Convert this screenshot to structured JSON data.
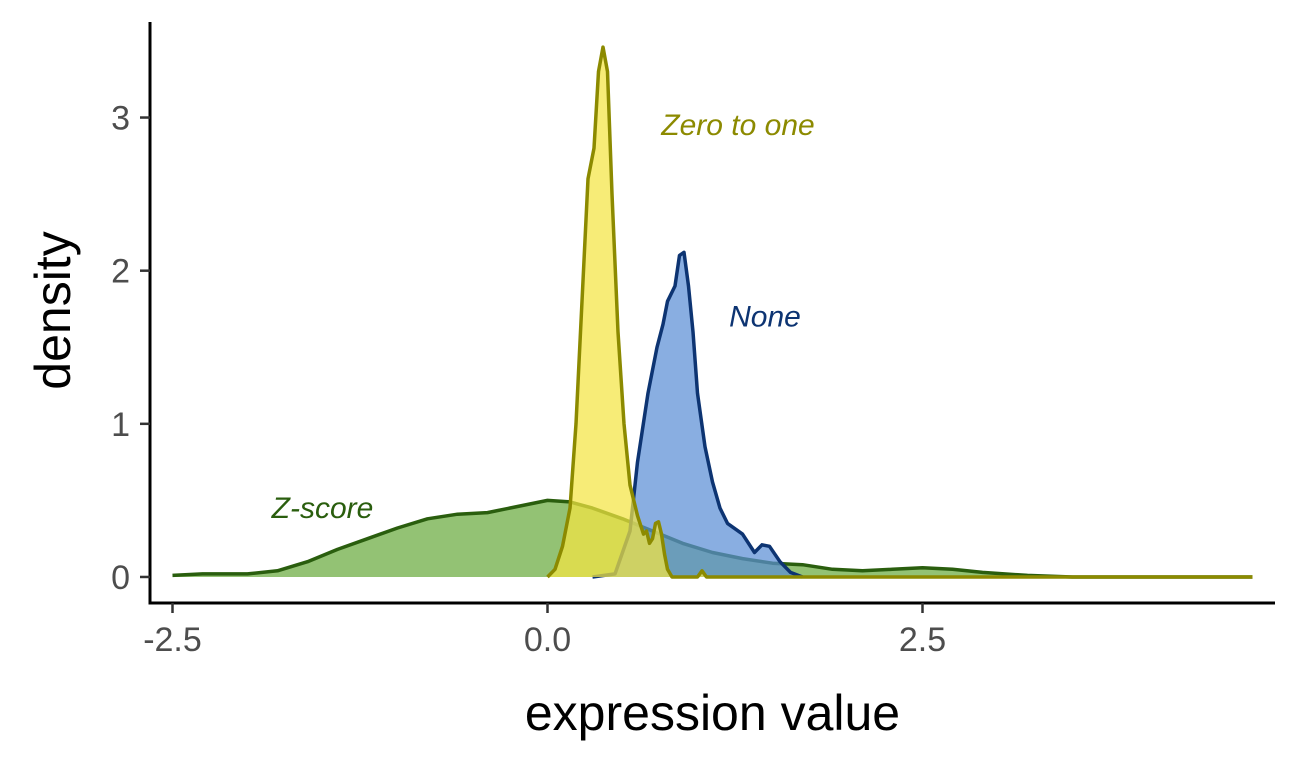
{
  "chart_data": {
    "type": "area",
    "xlabel": "expression value",
    "ylabel": "density",
    "xlim": [
      -2.65,
      4.85
    ],
    "ylim": [
      -0.17,
      3.65
    ],
    "x_ticks": [
      -2.5,
      0.0,
      2.5
    ],
    "x_tick_labels": [
      "-2.5",
      "0.0",
      "2.5"
    ],
    "y_ticks": [
      0,
      1,
      2,
      3
    ],
    "y_tick_labels": [
      "0",
      "1",
      "2",
      "3"
    ],
    "grid": false,
    "series": [
      {
        "name": "Z-score",
        "fill": "#6aaa3f",
        "line": "#2a5e0e",
        "points": [
          [
            -2.5,
            0.01
          ],
          [
            -2.3,
            0.02
          ],
          [
            -2.0,
            0.02
          ],
          [
            -1.8,
            0.04
          ],
          [
            -1.6,
            0.1
          ],
          [
            -1.4,
            0.18
          ],
          [
            -1.2,
            0.25
          ],
          [
            -1.0,
            0.32
          ],
          [
            -0.8,
            0.38
          ],
          [
            -0.6,
            0.41
          ],
          [
            -0.4,
            0.42
          ],
          [
            -0.2,
            0.46
          ],
          [
            0.0,
            0.5
          ],
          [
            0.15,
            0.49
          ],
          [
            0.3,
            0.45
          ],
          [
            0.5,
            0.38
          ],
          [
            0.7,
            0.3
          ],
          [
            0.9,
            0.22
          ],
          [
            1.1,
            0.16
          ],
          [
            1.3,
            0.12
          ],
          [
            1.5,
            0.09
          ],
          [
            1.7,
            0.08
          ],
          [
            1.9,
            0.05
          ],
          [
            2.1,
            0.04
          ],
          [
            2.3,
            0.05
          ],
          [
            2.5,
            0.06
          ],
          [
            2.7,
            0.05
          ],
          [
            2.9,
            0.03
          ],
          [
            3.2,
            0.01
          ],
          [
            3.5,
            0.0
          ],
          [
            4.0,
            0.0
          ],
          [
            4.7,
            0.0
          ]
        ]
      },
      {
        "name": "None",
        "fill": "#5b8fd6",
        "line": "#0d3472",
        "points": [
          [
            0.3,
            0.0
          ],
          [
            0.45,
            0.02
          ],
          [
            0.55,
            0.3
          ],
          [
            0.6,
            0.75
          ],
          [
            0.67,
            1.2
          ],
          [
            0.73,
            1.5
          ],
          [
            0.77,
            1.65
          ],
          [
            0.8,
            1.8
          ],
          [
            0.85,
            1.9
          ],
          [
            0.88,
            2.1
          ],
          [
            0.91,
            2.12
          ],
          [
            0.94,
            1.9
          ],
          [
            0.97,
            1.6
          ],
          [
            1.0,
            1.2
          ],
          [
            1.05,
            0.85
          ],
          [
            1.1,
            0.62
          ],
          [
            1.15,
            0.45
          ],
          [
            1.2,
            0.35
          ],
          [
            1.3,
            0.28
          ],
          [
            1.38,
            0.16
          ],
          [
            1.43,
            0.21
          ],
          [
            1.48,
            0.2
          ],
          [
            1.55,
            0.1
          ],
          [
            1.62,
            0.03
          ],
          [
            1.7,
            0.0
          ]
        ]
      },
      {
        "name": "Zero to one",
        "fill": "#f4e542",
        "line": "#8c8a00",
        "points": [
          [
            0.0,
            0.0
          ],
          [
            0.05,
            0.05
          ],
          [
            0.1,
            0.2
          ],
          [
            0.15,
            0.45
          ],
          [
            0.19,
            1.0
          ],
          [
            0.23,
            1.8
          ],
          [
            0.27,
            2.6
          ],
          [
            0.31,
            2.8
          ],
          [
            0.34,
            3.3
          ],
          [
            0.37,
            3.46
          ],
          [
            0.4,
            3.3
          ],
          [
            0.43,
            2.5
          ],
          [
            0.47,
            1.6
          ],
          [
            0.51,
            1.0
          ],
          [
            0.55,
            0.6
          ],
          [
            0.6,
            0.4
          ],
          [
            0.64,
            0.28
          ],
          [
            0.66,
            0.3
          ],
          [
            0.68,
            0.22
          ],
          [
            0.7,
            0.25
          ],
          [
            0.72,
            0.35
          ],
          [
            0.74,
            0.36
          ],
          [
            0.76,
            0.28
          ],
          [
            0.78,
            0.15
          ],
          [
            0.8,
            0.05
          ],
          [
            0.83,
            0.0
          ],
          [
            1.0,
            0.0
          ],
          [
            1.03,
            0.04
          ],
          [
            1.06,
            0.0
          ],
          [
            1.5,
            0.0
          ],
          [
            2.5,
            0.0
          ],
          [
            3.5,
            0.0
          ],
          [
            4.7,
            0.0
          ]
        ]
      }
    ],
    "annotations": [
      {
        "text": "Z-score",
        "x": -1.5,
        "y": 0.45,
        "color": "#2a5e0e"
      },
      {
        "text": "None",
        "x": 1.45,
        "y": 1.7,
        "color": "#0d3472"
      },
      {
        "text": "Zero to one",
        "x": 1.27,
        "y": 2.95,
        "color": "#8c8a00"
      }
    ]
  }
}
